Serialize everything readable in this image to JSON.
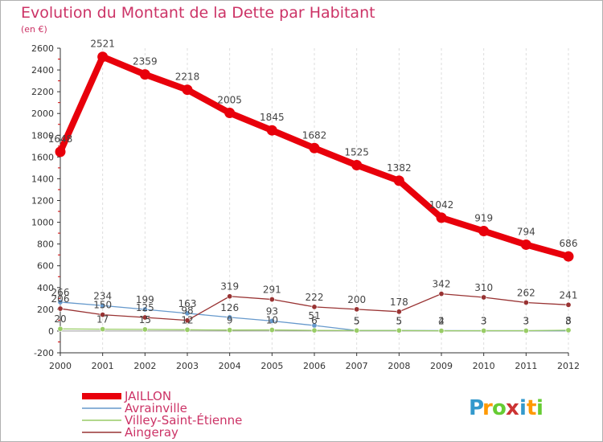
{
  "chart_data": {
    "type": "line",
    "title": "Evolution du Montant de la Dette par Habitant",
    "subtitle": "(en €)",
    "x": [
      "2000",
      "2001",
      "2002",
      "2003",
      "2004",
      "2005",
      "2006",
      "2007",
      "2008",
      "2009",
      "2010",
      "2011",
      "2012"
    ],
    "ylim": [
      -200,
      2600
    ],
    "yticks": [
      -200,
      0,
      200,
      400,
      600,
      800,
      1000,
      1200,
      1400,
      1600,
      1800,
      2000,
      2200,
      2400,
      2600
    ],
    "grid": "vertical-dashed",
    "legend_position": "bottom-left",
    "series": [
      {
        "name": "JAILLON",
        "color": "#e8000b",
        "values": [
          1648,
          2521,
          2359,
          2218,
          2005,
          1845,
          1682,
          1525,
          1382,
          1042,
          919,
          794,
          686
        ],
        "labels": [
          "1648",
          "2521",
          "2359",
          "2218",
          "2005",
          "1845",
          "1682",
          "1525",
          "1382",
          "1042",
          "919",
          "794",
          "686"
        ]
      },
      {
        "name": "Avrainville",
        "color": "#6699cc",
        "values": [
          266,
          234,
          199,
          163,
          126,
          93,
          51,
          5,
          5,
          4,
          3,
          3,
          3
        ],
        "labels": [
          "266",
          "234",
          "199",
          "163",
          "126",
          "93",
          "51",
          "5",
          "5",
          "4",
          "3",
          "3",
          "3"
        ]
      },
      {
        "name": "Villey-Saint-Étienne",
        "color": "#99cc66",
        "values": [
          20,
          17,
          15,
          12,
          9,
          10,
          6,
          5,
          5,
          2,
          3,
          3,
          8
        ],
        "labels": [
          "20",
          "17",
          "15",
          "12",
          "9",
          "10",
          "6",
          "5",
          "5",
          "2",
          "3",
          "3",
          "8"
        ]
      },
      {
        "name": "Aingeray",
        "color": "#993333",
        "values": [
          206,
          150,
          125,
          98,
          319,
          291,
          222,
          200,
          178,
          342,
          310,
          262,
          241
        ],
        "labels": [
          "206",
          "150",
          "125",
          "98",
          "319",
          "291",
          "222",
          "200",
          "178",
          "342",
          "310",
          "262",
          "241"
        ]
      }
    ]
  },
  "logo": {
    "chars": [
      "P",
      "r",
      "o",
      "x",
      "i",
      "t",
      "i"
    ],
    "colors": [
      "#3399cc",
      "#ff9900",
      "#66cc33",
      "#cc3333",
      "#3399cc",
      "#ff9900",
      "#66cc33"
    ]
  },
  "colors": {
    "title": "#cc3366",
    "axis": "#333333",
    "grid": "#dddddd",
    "tick_marks": "#cc0000",
    "legend_text": "#cc3366"
  }
}
